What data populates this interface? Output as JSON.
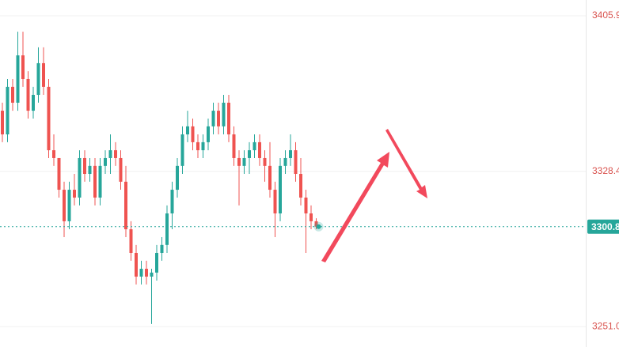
{
  "chart_data": {
    "type": "candlestick",
    "ylim": [
      3240.8,
      3413.8
    ],
    "yticks": [
      3405.9,
      3328.4,
      {
        "value": 3251.0,
        "label": "3251.0"
      }
    ],
    "grid": true,
    "up_color": "#26a69a",
    "down_color": "#ef5350",
    "current_price": 3300.8,
    "open": [
      3358.6,
      3346.8,
      3370.5,
      3362.6,
      3386.2,
      3374.4,
      3358.6,
      3366.5,
      3382.3,
      3370.5,
      3338.9,
      3335.0,
      3319.2,
      3303.5,
      3319.2,
      3315.3,
      3335.0,
      3327.1,
      3331.1,
      3315.3,
      3331.1,
      3335.0,
      3338.9,
      3335.0,
      3323.2,
      3299.5,
      3287.7,
      3275.9,
      3279.8,
      3275.9,
      3277.9,
      3287.7,
      3291.7,
      3307.4,
      3319.2,
      3331.1,
      3346.8,
      3350.8,
      3342.9,
      3338.9,
      3342.9,
      3350.8,
      3358.6,
      3350.8,
      3362.6,
      3346.8,
      3335.0,
      3331.1,
      3335.0,
      3338.9,
      3342.9,
      3335.0,
      3331.1,
      3319.2,
      3307.4,
      3331.1,
      3335.0,
      3338.9,
      3327.1,
      3315.3,
      3307.4,
      3303.5
    ],
    "high": [
      3362.6,
      3374.4,
      3374.4,
      3398.0,
      3398.0,
      3378.3,
      3370.5,
      3390.2,
      3390.2,
      3374.4,
      3346.8,
      3335.0,
      3323.2,
      3323.2,
      3327.1,
      3338.9,
      3338.9,
      3335.0,
      3335.0,
      3335.0,
      3338.9,
      3346.8,
      3342.9,
      3338.9,
      3331.1,
      3303.5,
      3291.7,
      3283.8,
      3283.8,
      3279.8,
      3291.7,
      3295.6,
      3311.4,
      3323.2,
      3335.0,
      3350.8,
      3358.6,
      3354.7,
      3346.8,
      3346.8,
      3354.7,
      3362.6,
      3362.6,
      3366.5,
      3366.5,
      3350.8,
      3338.9,
      3338.9,
      3342.9,
      3346.8,
      3346.8,
      3338.9,
      3342.9,
      3323.2,
      3335.0,
      3338.9,
      3346.8,
      3342.9,
      3335.0,
      3319.2,
      3311.4,
      3305.0
    ],
    "low": [
      3342.9,
      3342.9,
      3358.6,
      3358.6,
      3370.5,
      3354.7,
      3354.7,
      3362.6,
      3366.5,
      3335.0,
      3331.1,
      3315.3,
      3295.6,
      3299.5,
      3311.4,
      3311.4,
      3323.2,
      3323.2,
      3311.4,
      3311.4,
      3327.1,
      3327.1,
      3331.1,
      3319.2,
      3295.6,
      3283.8,
      3272.0,
      3272.0,
      3272.0,
      3252.3,
      3273.9,
      3283.8,
      3287.7,
      3299.5,
      3315.3,
      3327.1,
      3342.9,
      3338.9,
      3335.0,
      3335.0,
      3338.9,
      3346.8,
      3346.8,
      3346.8,
      3342.9,
      3331.1,
      3311.4,
      3327.1,
      3327.1,
      3335.0,
      3331.1,
      3323.2,
      3315.3,
      3295.6,
      3303.5,
      3327.1,
      3331.1,
      3323.2,
      3311.4,
      3287.7,
      3299.5,
      3299.5
    ],
    "close": [
      3346.8,
      3370.5,
      3362.6,
      3386.2,
      3374.4,
      3358.6,
      3366.5,
      3382.3,
      3370.5,
      3338.9,
      3335.0,
      3319.2,
      3303.5,
      3319.2,
      3315.3,
      3335.0,
      3327.1,
      3331.1,
      3315.3,
      3331.1,
      3335.0,
      3338.9,
      3335.0,
      3323.2,
      3299.5,
      3287.7,
      3275.9,
      3279.8,
      3275.9,
      3277.9,
      3287.7,
      3291.7,
      3307.4,
      3319.2,
      3331.1,
      3346.8,
      3350.8,
      3342.9,
      3338.9,
      3342.9,
      3350.8,
      3358.6,
      3350.8,
      3362.6,
      3346.8,
      3335.0,
      3331.1,
      3335.0,
      3338.9,
      3342.9,
      3335.0,
      3331.1,
      3319.2,
      3307.4,
      3331.1,
      3335.0,
      3338.9,
      3327.1,
      3315.3,
      3307.4,
      3303.5,
      3300.8
    ]
  }
}
